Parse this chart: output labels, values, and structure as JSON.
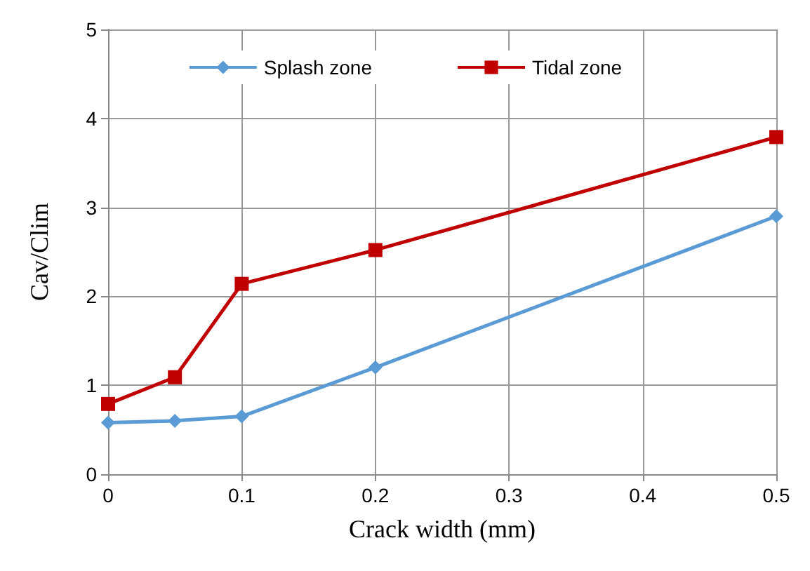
{
  "chart_data": {
    "type": "line",
    "xlabel": "Crack width (mm)",
    "ylabel": "Cav/Clim",
    "x": [
      0,
      0.05,
      0.1,
      0.2,
      0.5
    ],
    "series": [
      {
        "name": "Splash zone",
        "color": "#5b9bd5",
        "values": [
          0.58,
          0.6,
          0.65,
          1.2,
          2.9
        ],
        "marker": "diamond"
      },
      {
        "name": "Tidal zone",
        "color": "#c00000",
        "values": [
          0.79,
          1.09,
          2.14,
          2.52,
          3.79
        ],
        "marker": "square"
      }
    ],
    "xlim": [
      0,
      0.5
    ],
    "xticks": [
      0,
      0.1,
      0.2,
      0.3,
      0.4,
      0.5
    ],
    "ylim": [
      0,
      5
    ],
    "yticks": [
      0,
      1,
      2,
      3,
      4,
      5
    ],
    "grid": true,
    "legend": "top",
    "line_style": "solid"
  }
}
